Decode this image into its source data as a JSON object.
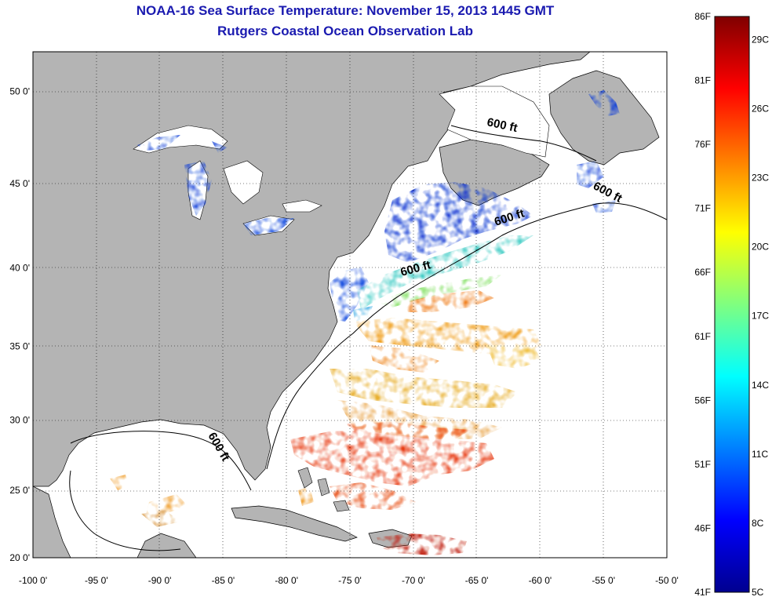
{
  "title_line1": "NOAA-16 Sea Surface Temperature:  November 15, 2013 1445 GMT",
  "title_line2": "Rutgers Coastal Ocean Observation Lab",
  "map": {
    "lon_range": [
      -100,
      -50
    ],
    "lat_range": [
      20,
      52
    ],
    "lon_ticks": [
      "-100 0'",
      "-95 0'",
      "-90 0'",
      "-85 0'",
      "-80 0'",
      "-75 0'",
      "-70 0'",
      "-65 0'",
      "-60 0'",
      "-55 0'",
      "-50 0'"
    ],
    "lat_ticks": [
      "20 0'",
      "25 0'",
      "30 0'",
      "35 0'",
      "40 0'",
      "45 0'",
      "50 0'"
    ],
    "contour_label": "600 ft",
    "land_color": "#b4b4b4",
    "ocean_color": "#ffffff"
  },
  "colorbar": {
    "fahrenheit_labels": [
      "86F",
      "81F",
      "76F",
      "71F",
      "66F",
      "61F",
      "56F",
      "51F",
      "46F",
      "41F"
    ],
    "celsius_labels": [
      "29C",
      "26C",
      "23C",
      "20C",
      "17C",
      "14C",
      "11C",
      "8C",
      "5C"
    ],
    "range_c": [
      5,
      30
    ],
    "colormap": "jet"
  }
}
